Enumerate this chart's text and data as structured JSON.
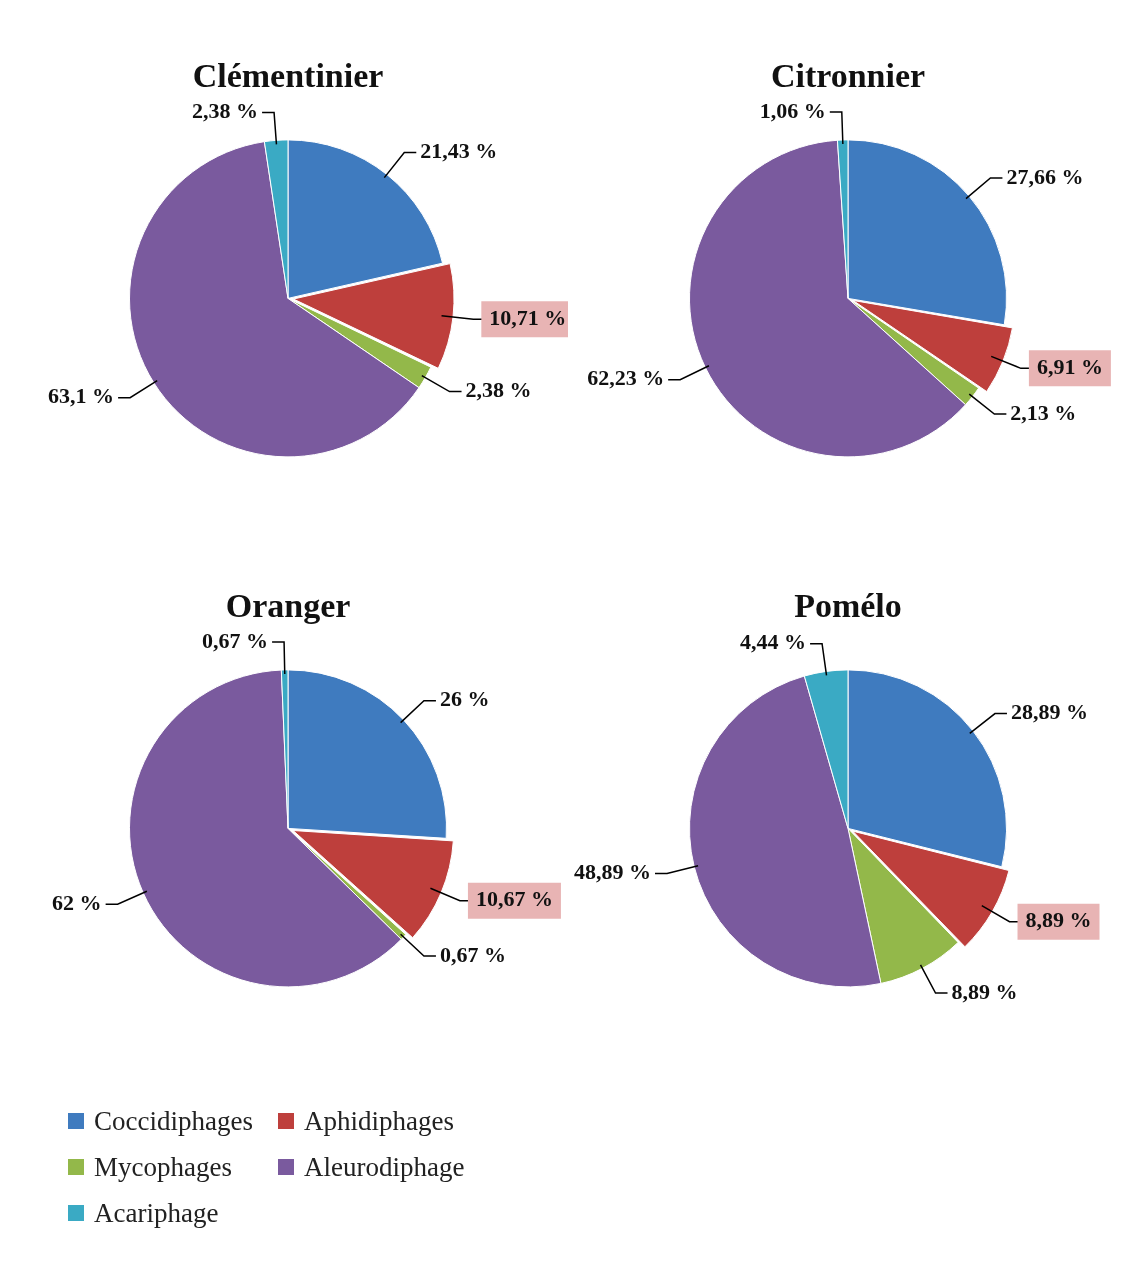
{
  "chart_data": [
    {
      "type": "pie",
      "title": "Clémentinier",
      "categories": [
        "Coccidiphages",
        "Aphidiphages",
        "Mycophages",
        "Aleurodiphage",
        "Acariphage"
      ],
      "values": [
        21.43,
        10.71,
        2.38,
        63.1,
        2.38
      ],
      "colors": [
        "#3f7bbf",
        "#be3f3c",
        "#93b84a",
        "#7a5a9e",
        "#3aaac4"
      ],
      "value_labels": [
        "21,43 %",
        "10,71 %",
        "2,38 %",
        "63,1 %",
        "2,38 %"
      ],
      "legend": "bottom"
    },
    {
      "type": "pie",
      "title": "Citronnier",
      "categories": [
        null,
        null,
        null,
        null,
        null
      ],
      "values": [
        27.66,
        6.91,
        2.13,
        62.23,
        1.06
      ],
      "colors": [
        "#3f7bbf",
        "#be3f3c",
        "#93b84a",
        "#7a5a9e",
        "#3aaac4"
      ],
      "value_labels": [
        "27,66 %",
        "6,91 %",
        "2,13 %",
        "62,23 %",
        "1,06 %"
      ]
    },
    {
      "type": "pie",
      "title": "Oranger",
      "categories": [
        null,
        null,
        null,
        null,
        null
      ],
      "values": [
        26,
        10.67,
        0.67,
        62,
        0.67
      ],
      "colors": [
        "#3f7bbf",
        "#be3f3c",
        "#93b84a",
        "#7a5a9e",
        "#3aaac4"
      ],
      "value_labels": [
        "26 %",
        "10,67 %",
        "0,67 %",
        "62 %",
        "0,67 %"
      ]
    },
    {
      "type": "pie",
      "title": "Pomélo",
      "categories": [
        null,
        null,
        null,
        null,
        null
      ],
      "values": [
        28.89,
        8.89,
        8.89,
        48.89,
        4.44
      ],
      "colors": [
        "#3f7bbf",
        "#be3f3c",
        "#93b84a",
        "#7a5a9e",
        "#3aaac4"
      ],
      "value_labels": [
        "28,89 %",
        "8,89 %",
        "8,89 %",
        "48,89 %",
        "4,44 %"
      ]
    }
  ]
}
